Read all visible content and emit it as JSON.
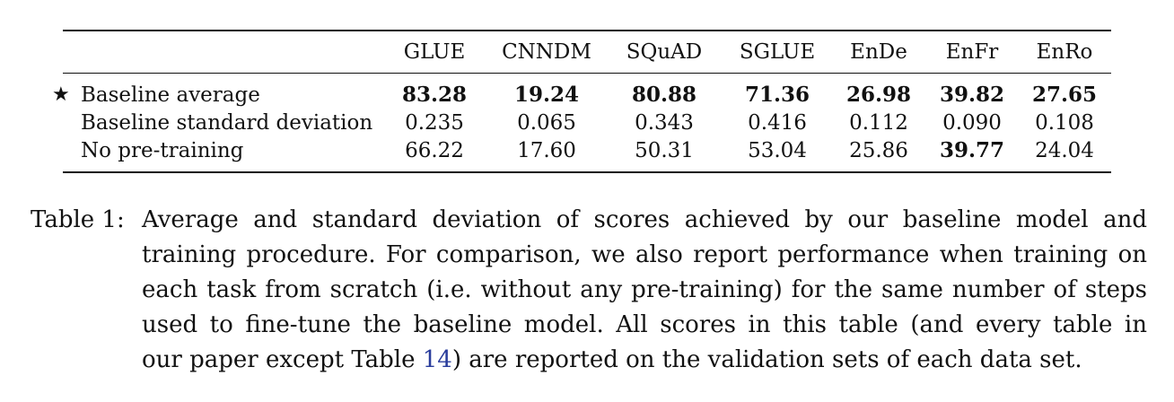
{
  "table": {
    "columns": [
      "GLUE",
      "CNNDM",
      "SQuAD",
      "SGLUE",
      "EnDe",
      "EnFr",
      "EnRo"
    ],
    "rows": [
      {
        "marker": "★",
        "label": "Baseline average",
        "values": [
          "83.28",
          "19.24",
          "80.88",
          "71.36",
          "26.98",
          "39.82",
          "27.65"
        ],
        "bold": [
          true,
          true,
          true,
          true,
          true,
          true,
          true
        ]
      },
      {
        "marker": "",
        "label": "Baseline standard deviation",
        "values": [
          "0.235",
          "0.065",
          "0.343",
          "0.416",
          "0.112",
          "0.090",
          "0.108"
        ],
        "bold": [
          false,
          false,
          false,
          false,
          false,
          false,
          false
        ]
      },
      {
        "marker": "",
        "label": "No pre-training",
        "values": [
          "66.22",
          "17.60",
          "50.31",
          "53.04",
          "25.86",
          "39.77",
          "24.04"
        ],
        "bold": [
          false,
          false,
          false,
          false,
          false,
          true,
          false
        ]
      }
    ]
  },
  "caption": {
    "label": "Table 1:",
    "lines": [
      "Average and standard deviation of scores achieved by our baseline model and",
      "training procedure. For comparison, we also report performance when training on",
      "each task from scratch (i.e. without any pre-training) for the same number of steps",
      "used to fine-tune the baseline model. All scores in this table (and every table in"
    ],
    "last_line_before": "our paper except Table ",
    "reference": "14",
    "last_line_after": ") are reported on the validation sets of each data set."
  },
  "colors": {
    "text": "#111111",
    "reference_link": "#2a3d9c"
  }
}
